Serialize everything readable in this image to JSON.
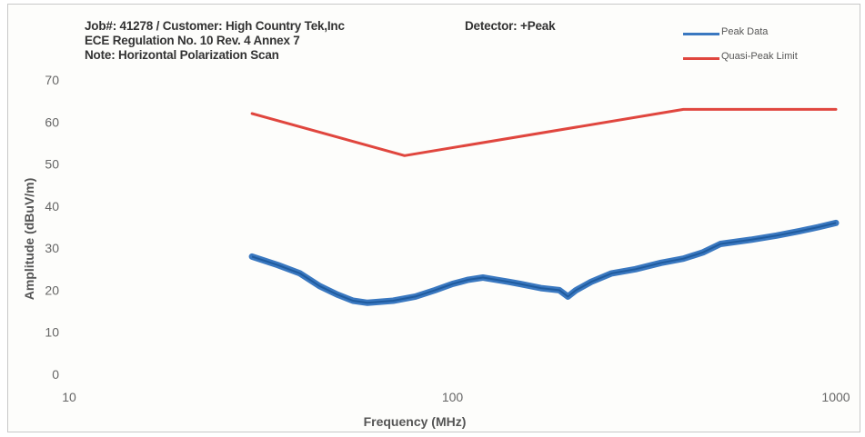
{
  "header": {
    "line1": "Job#: 41278 / Customer: High Country Tek,Inc",
    "line2": "ECE Regulation No. 10 Rev. 4 Annex 7",
    "line3": "Note: Horizontal Polarization Scan",
    "detector": "Detector: +Peak"
  },
  "chart_data": {
    "type": "line",
    "xlabel": "Frequency (MHz)",
    "ylabel": "Amplitude (dBuV/m)",
    "xscale": "log",
    "xlim": [
      10,
      1000
    ],
    "ylim": [
      0,
      70
    ],
    "x_ticks": [
      "10",
      "100",
      "1000"
    ],
    "y_ticks": [
      "0",
      "10",
      "20",
      "30",
      "40",
      "50",
      "60",
      "70"
    ],
    "grid": false,
    "legend_position": "top-right",
    "series": [
      {
        "name": "Peak Data",
        "color": "#3a78c0",
        "x": [
          30,
          35,
          40,
          45,
          50,
          55,
          60,
          70,
          80,
          90,
          100,
          110,
          120,
          130,
          140,
          150,
          170,
          190,
          200,
          210,
          230,
          260,
          300,
          350,
          400,
          450,
          500,
          600,
          700,
          800,
          900,
          1000
        ],
        "y": [
          28,
          26,
          24,
          21,
          19,
          17.5,
          17,
          17.5,
          18.5,
          20,
          21.5,
          22.5,
          23,
          22.5,
          22,
          21.5,
          20.5,
          20,
          18.5,
          20,
          22,
          24,
          25,
          26.5,
          27.5,
          29,
          31,
          32,
          33,
          34,
          35,
          36
        ]
      },
      {
        "name": "Quasi-Peak Limit",
        "color": "#e0463e",
        "x": [
          30,
          75,
          400,
          1000
        ],
        "y": [
          62,
          52,
          63,
          63
        ]
      }
    ]
  }
}
